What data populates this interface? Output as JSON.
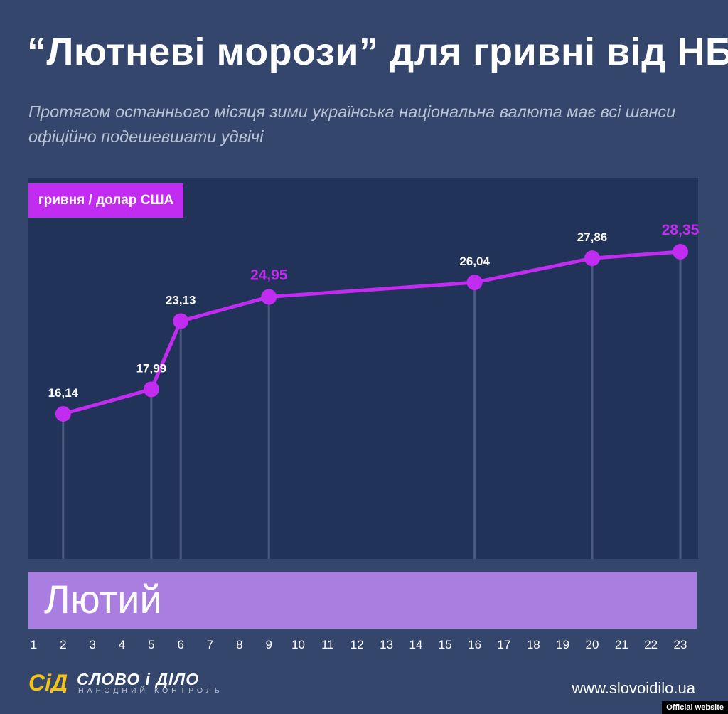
{
  "header": {
    "title": "“Лютневі морози” для гривні від НБУ",
    "subtitle": "Протягом останнього місяця зими українська національна валюта має всі шанси офіційно подешевшати удвічі"
  },
  "chart_data": {
    "type": "line",
    "ylabel": "гривня / долар США",
    "xlabel": "Лютий",
    "x_ticks": [
      1,
      2,
      3,
      4,
      5,
      6,
      7,
      8,
      9,
      10,
      11,
      12,
      13,
      14,
      15,
      16,
      17,
      18,
      19,
      20,
      21,
      22,
      23
    ],
    "x_tick_labels": [
      "1",
      "2",
      "3",
      "4",
      "5",
      "6",
      "7",
      "8",
      "9",
      "10",
      "11",
      "12",
      "13",
      "14",
      "15",
      "16",
      "17",
      "18",
      "19",
      "20",
      "21",
      "22",
      "23"
    ],
    "x": [
      2,
      5,
      6,
      9,
      16,
      20,
      23
    ],
    "values": [
      16.14,
      17.99,
      23.13,
      24.95,
      26.04,
      27.86,
      28.35
    ],
    "value_labels": [
      "16,14",
      "17,99",
      "23,13",
      "24,95",
      "26,04",
      "27,86",
      "28,35"
    ],
    "highlighted": [
      false,
      false,
      false,
      true,
      false,
      false,
      true
    ],
    "grid": false,
    "colors": {
      "line": "#c12cf0",
      "highlight_label": "#c12cf0",
      "label": "#ffffff",
      "guide": "#4c5c80"
    }
  },
  "footer": {
    "logo_mark": "СіД",
    "brand": "СЛОВО і ДІЛО",
    "brand_sub": "НАРОДНИЙ КОНТРОЛЬ",
    "website": "www.slovoidilo.ua",
    "badge": "Official website"
  },
  "colors": {
    "background": "#34466c",
    "plot_background": "#22335a",
    "accent": "#c12cf0",
    "month_band": "#aa7ee0",
    "logo_yellow": "#f2c417"
  }
}
